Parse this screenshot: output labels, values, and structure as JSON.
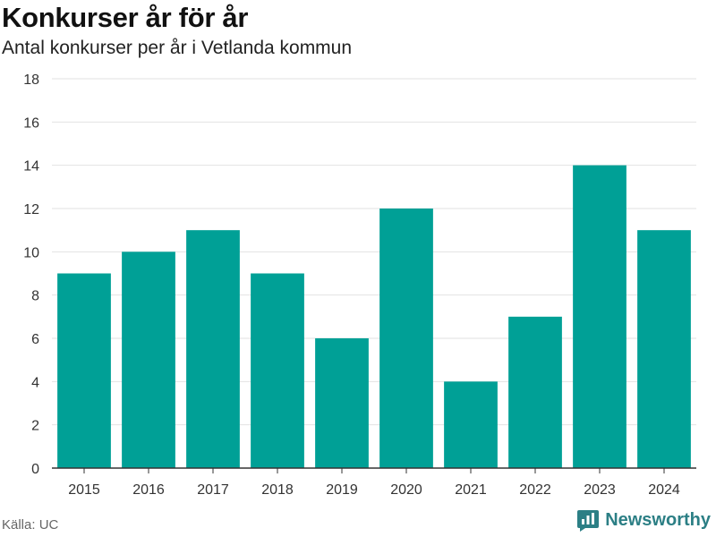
{
  "title": "Konkurser år för år",
  "subtitle": "Antal konkurser per år i Vetlanda kommun",
  "source": "Källa: UC",
  "brand": "Newsworthy",
  "colors": {
    "bar": "#00a096",
    "grid": "#e2e2e2",
    "axis": "#333333",
    "brand": "#2c7f85"
  },
  "chart_data": {
    "type": "bar",
    "title": "Konkurser år för år",
    "subtitle": "Antal konkurser per år i Vetlanda kommun",
    "categories": [
      "2015",
      "2016",
      "2017",
      "2018",
      "2019",
      "2020",
      "2021",
      "2022",
      "2023",
      "2024"
    ],
    "values": [
      9,
      10,
      11,
      9,
      6,
      12,
      4,
      7,
      14,
      11
    ],
    "xlabel": "",
    "ylabel": "",
    "ylim": [
      0,
      18
    ],
    "yticks": [
      0,
      2,
      4,
      6,
      8,
      10,
      12,
      14,
      16,
      18
    ],
    "grid": true,
    "legend": "none"
  }
}
